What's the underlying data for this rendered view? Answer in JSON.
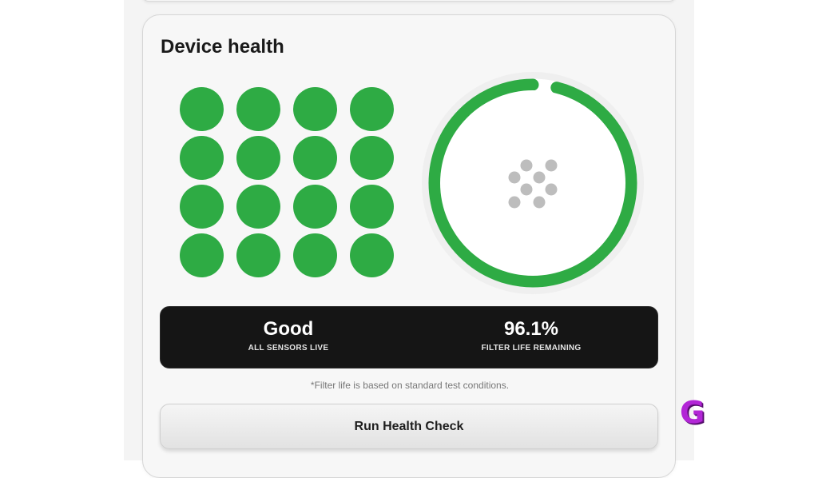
{
  "card": {
    "title": "Device health"
  },
  "sensors": {
    "count": 16,
    "columns": 4,
    "color": "#2eab44"
  },
  "gauge": {
    "value_percent": 96.1,
    "ring_color": "#2eab44",
    "track_color": "#ffffff",
    "icon": "filter-dots-icon",
    "icon_color": "#bdbdbd"
  },
  "stats": {
    "status_value": "Good",
    "status_label": "ALL SENSORS LIVE",
    "filter_value": "96.1%",
    "filter_label": "FILTER LIFE REMAINING"
  },
  "footnote": "*Filter life is based on standard test conditions.",
  "actions": {
    "run_label": "Run Health Check"
  },
  "brand": {
    "letter": "G",
    "color": "#b226d6"
  }
}
